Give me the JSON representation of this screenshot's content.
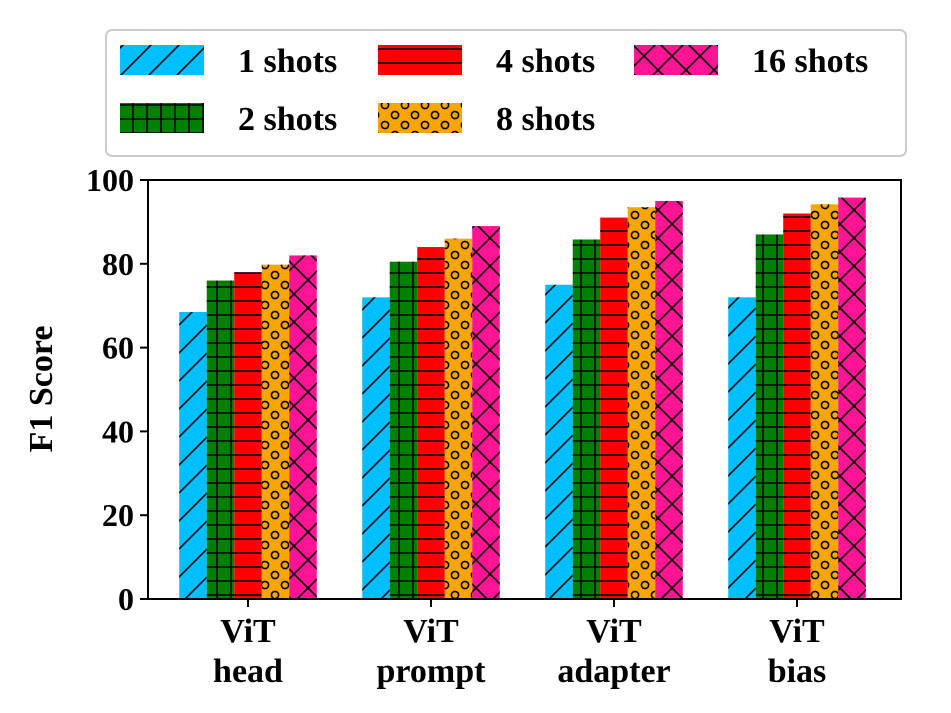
{
  "chart_data": {
    "type": "bar",
    "title": "",
    "xlabel": "",
    "ylabel": "F1 Score",
    "ylim": [
      0,
      100
    ],
    "yticks": [
      0,
      20,
      40,
      60,
      80,
      100
    ],
    "categories": [
      [
        "ViT",
        "head"
      ],
      [
        "ViT",
        "prompt"
      ],
      [
        "ViT",
        "adapter"
      ],
      [
        "ViT",
        "bias"
      ]
    ],
    "series": [
      {
        "name": "1 shots",
        "color": "#00bfff",
        "pattern": "diagonal",
        "values": [
          68.5,
          72.0,
          75.0,
          72.0
        ]
      },
      {
        "name": "2 shots",
        "color": "#008000",
        "pattern": "grid",
        "values": [
          76.0,
          80.5,
          85.8,
          87.0
        ]
      },
      {
        "name": "4 shots",
        "color": "#ff0000",
        "pattern": "horizontal",
        "values": [
          78.0,
          84.0,
          91.0,
          92.0
        ]
      },
      {
        "name": "8 shots",
        "color": "#ffa500",
        "pattern": "circles",
        "values": [
          79.8,
          86.0,
          93.5,
          94.2
        ]
      },
      {
        "name": "16 shots",
        "color": "#ff1493",
        "pattern": "crosshatch",
        "values": [
          82.0,
          89.0,
          95.0,
          95.8
        ]
      }
    ],
    "legend": {
      "position": "top",
      "columns": 3
    }
  }
}
